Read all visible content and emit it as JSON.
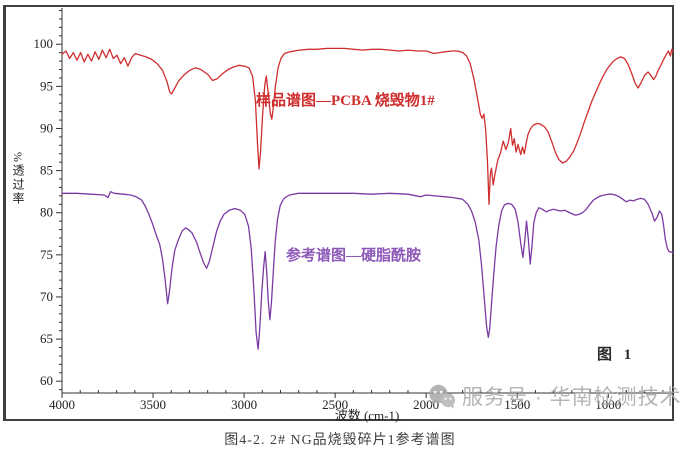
{
  "figure": {
    "caption": "图4-2.    2# NG品烧毁碎片1参考谱图",
    "box_label": "图 1"
  },
  "watermark": {
    "icon": "wechat-icon",
    "text": "服务号 · 华南检测技术",
    "color": "#a8a8a8"
  },
  "chart_data": {
    "type": "line",
    "title": "",
    "xlabel": "波数 (cm-1)",
    "ylabel": "%透过率",
    "x_ticks": [
      4000,
      3500,
      3000,
      2500,
      2000,
      1500,
      1000
    ],
    "y_ticks": [
      100,
      95,
      90,
      85,
      80,
      75,
      70,
      65,
      60
    ],
    "xlim": [
      4000,
      650
    ],
    "ylim": [
      58.6,
      104.3
    ],
    "x_axis_reversed": true,
    "grid": false,
    "legend_position": "inline-annotations",
    "series": [
      {
        "name": "样品谱图—PCBA 烧毁物1#",
        "color": "#cf2e2e",
        "points": [
          [
            4000,
            98.8
          ],
          [
            3978,
            99.2
          ],
          [
            3958,
            98.3
          ],
          [
            3938,
            99.0
          ],
          [
            3918,
            98.1
          ],
          [
            3898,
            99.0
          ],
          [
            3878,
            97.9
          ],
          [
            3858,
            98.8
          ],
          [
            3838,
            98.0
          ],
          [
            3818,
            99.1
          ],
          [
            3798,
            98.2
          ],
          [
            3778,
            99.3
          ],
          [
            3758,
            98.4
          ],
          [
            3738,
            99.4
          ],
          [
            3718,
            98.3
          ],
          [
            3698,
            98.7
          ],
          [
            3678,
            97.7
          ],
          [
            3658,
            98.4
          ],
          [
            3638,
            97.4
          ],
          [
            3618,
            98.4
          ],
          [
            3598,
            98.9
          ],
          [
            3568,
            98.7
          ],
          [
            3538,
            98.5
          ],
          [
            3508,
            98.2
          ],
          [
            3478,
            97.7
          ],
          [
            3448,
            96.9
          ],
          [
            3423,
            95.5
          ],
          [
            3408,
            94.3
          ],
          [
            3398,
            94.1
          ],
          [
            3383,
            94.7
          ],
          [
            3358,
            95.7
          ],
          [
            3328,
            96.4
          ],
          [
            3298,
            96.9
          ],
          [
            3268,
            97.2
          ],
          [
            3238,
            97.0
          ],
          [
            3198,
            96.4
          ],
          [
            3173,
            95.7
          ],
          [
            3148,
            95.9
          ],
          [
            3118,
            96.5
          ],
          [
            3088,
            97.0
          ],
          [
            3058,
            97.3
          ],
          [
            3028,
            97.5
          ],
          [
            2998,
            97.4
          ],
          [
            2973,
            97.2
          ],
          [
            2953,
            96.2
          ],
          [
            2938,
            93.3
          ],
          [
            2926,
            88.0
          ],
          [
            2918,
            85.2
          ],
          [
            2910,
            87.2
          ],
          [
            2898,
            91.8
          ],
          [
            2886,
            95.2
          ],
          [
            2878,
            96.2
          ],
          [
            2868,
            94.3
          ],
          [
            2856,
            91.8
          ],
          [
            2848,
            91.1
          ],
          [
            2840,
            92.4
          ],
          [
            2828,
            95.0
          ],
          [
            2813,
            97.2
          ],
          [
            2798,
            98.3
          ],
          [
            2778,
            98.9
          ],
          [
            2748,
            99.1
          ],
          [
            2698,
            99.3
          ],
          [
            2648,
            99.4
          ],
          [
            2598,
            99.4
          ],
          [
            2548,
            99.5
          ],
          [
            2498,
            99.5
          ],
          [
            2448,
            99.5
          ],
          [
            2398,
            99.4
          ],
          [
            2348,
            99.3
          ],
          [
            2298,
            99.4
          ],
          [
            2248,
            99.4
          ],
          [
            2198,
            99.3
          ],
          [
            2148,
            99.2
          ],
          [
            2098,
            99.3
          ],
          [
            2048,
            99.2
          ],
          [
            1998,
            99.2
          ],
          [
            1958,
            98.9
          ],
          [
            1928,
            99.0
          ],
          [
            1898,
            99.1
          ],
          [
            1858,
            99.2
          ],
          [
            1828,
            99.2
          ],
          [
            1798,
            99.0
          ],
          [
            1778,
            98.6
          ],
          [
            1758,
            97.7
          ],
          [
            1738,
            95.9
          ],
          [
            1718,
            93.6
          ],
          [
            1703,
            91.7
          ],
          [
            1693,
            91.2
          ],
          [
            1683,
            91.7
          ],
          [
            1673,
            89.8
          ],
          [
            1663,
            86.0
          ],
          [
            1655,
            81.0
          ],
          [
            1648,
            84.6
          ],
          [
            1641,
            85.3
          ],
          [
            1632,
            83.3
          ],
          [
            1622,
            84.6
          ],
          [
            1607,
            86.2
          ],
          [
            1592,
            87.1
          ],
          [
            1577,
            88.5
          ],
          [
            1562,
            87.5
          ],
          [
            1549,
            88.3
          ],
          [
            1536,
            90.0
          ],
          [
            1526,
            88.0
          ],
          [
            1516,
            88.8
          ],
          [
            1506,
            87.2
          ],
          [
            1496,
            88.1
          ],
          [
            1481,
            86.9
          ],
          [
            1471,
            87.8
          ],
          [
            1461,
            87.0
          ],
          [
            1451,
            88.2
          ],
          [
            1441,
            89.3
          ],
          [
            1426,
            90.0
          ],
          [
            1411,
            90.4
          ],
          [
            1391,
            90.6
          ],
          [
            1371,
            90.5
          ],
          [
            1351,
            90.2
          ],
          [
            1331,
            89.6
          ],
          [
            1311,
            88.5
          ],
          [
            1291,
            87.2
          ],
          [
            1271,
            86.3
          ],
          [
            1251,
            85.9
          ],
          [
            1231,
            86.1
          ],
          [
            1211,
            86.6
          ],
          [
            1191,
            87.3
          ],
          [
            1171,
            88.3
          ],
          [
            1151,
            89.5
          ],
          [
            1131,
            90.8
          ],
          [
            1111,
            92.0
          ],
          [
            1091,
            93.2
          ],
          [
            1071,
            94.2
          ],
          [
            1051,
            95.2
          ],
          [
            1031,
            96.1
          ],
          [
            1011,
            96.9
          ],
          [
            991,
            97.5
          ],
          [
            971,
            98.0
          ],
          [
            951,
            98.3
          ],
          [
            931,
            98.5
          ],
          [
            911,
            98.3
          ],
          [
            891,
            97.6
          ],
          [
            871,
            96.5
          ],
          [
            851,
            95.3
          ],
          [
            836,
            94.8
          ],
          [
            821,
            95.4
          ],
          [
            801,
            96.3
          ],
          [
            781,
            96.7
          ],
          [
            766,
            96.3
          ],
          [
            751,
            95.8
          ],
          [
            739,
            96.2
          ],
          [
            726,
            96.9
          ],
          [
            711,
            97.5
          ],
          [
            696,
            98.2
          ],
          [
            681,
            98.8
          ],
          [
            669,
            99.2
          ],
          [
            659,
            98.6
          ],
          [
            651,
            99.4
          ],
          [
            645,
            99.1
          ]
        ]
      },
      {
        "name": "参考谱图—硬脂酰胺",
        "color": "#7b3aa3",
        "points": [
          [
            4000,
            82.3
          ],
          [
            3920,
            82.3
          ],
          [
            3840,
            82.2
          ],
          [
            3768,
            82.1
          ],
          [
            3748,
            81.8
          ],
          [
            3733,
            82.5
          ],
          [
            3713,
            82.3
          ],
          [
            3663,
            82.2
          ],
          [
            3623,
            82.1
          ],
          [
            3593,
            81.9
          ],
          [
            3563,
            81.5
          ],
          [
            3543,
            80.8
          ],
          [
            3523,
            79.8
          ],
          [
            3503,
            78.7
          ],
          [
            3483,
            77.4
          ],
          [
            3463,
            76.2
          ],
          [
            3448,
            74.5
          ],
          [
            3433,
            72.0
          ],
          [
            3420,
            69.2
          ],
          [
            3410,
            70.6
          ],
          [
            3396,
            73.4
          ],
          [
            3381,
            75.5
          ],
          [
            3361,
            76.8
          ],
          [
            3341,
            77.8
          ],
          [
            3321,
            78.2
          ],
          [
            3306,
            78.0
          ],
          [
            3286,
            77.6
          ],
          [
            3261,
            76.5
          ],
          [
            3241,
            75.2
          ],
          [
            3221,
            74.0
          ],
          [
            3206,
            73.4
          ],
          [
            3191,
            74.2
          ],
          [
            3171,
            76.0
          ],
          [
            3151,
            77.8
          ],
          [
            3131,
            79.0
          ],
          [
            3111,
            79.8
          ],
          [
            3081,
            80.3
          ],
          [
            3051,
            80.5
          ],
          [
            3021,
            80.3
          ],
          [
            2996,
            79.8
          ],
          [
            2976,
            78.4
          ],
          [
            2961,
            75.8
          ],
          [
            2946,
            70.8
          ],
          [
            2934,
            65.8
          ],
          [
            2923,
            63.8
          ],
          [
            2913,
            66.5
          ],
          [
            2903,
            70.6
          ],
          [
            2893,
            73.5
          ],
          [
            2884,
            75.4
          ],
          [
            2876,
            73.0
          ],
          [
            2867,
            69.4
          ],
          [
            2858,
            67.3
          ],
          [
            2849,
            69.6
          ],
          [
            2839,
            73.2
          ],
          [
            2829,
            76.6
          ],
          [
            2816,
            79.3
          ],
          [
            2801,
            80.9
          ],
          [
            2781,
            81.7
          ],
          [
            2751,
            82.1
          ],
          [
            2701,
            82.3
          ],
          [
            2601,
            82.3
          ],
          [
            2501,
            82.3
          ],
          [
            2401,
            82.3
          ],
          [
            2301,
            82.2
          ],
          [
            2201,
            82.3
          ],
          [
            2101,
            82.2
          ],
          [
            2031,
            81.9
          ],
          [
            2001,
            82.1
          ],
          [
            1951,
            82.0
          ],
          [
            1901,
            81.9
          ],
          [
            1851,
            81.8
          ],
          [
            1801,
            81.6
          ],
          [
            1771,
            81.0
          ],
          [
            1751,
            80.2
          ],
          [
            1731,
            78.9
          ],
          [
            1711,
            76.8
          ],
          [
            1696,
            73.8
          ],
          [
            1681,
            69.8
          ],
          [
            1669,
            66.6
          ],
          [
            1659,
            65.2
          ],
          [
            1651,
            66.2
          ],
          [
            1641,
            69.2
          ],
          [
            1629,
            72.6
          ],
          [
            1616,
            76.0
          ],
          [
            1601,
            78.5
          ],
          [
            1586,
            80.2
          ],
          [
            1571,
            80.9
          ],
          [
            1551,
            81.1
          ],
          [
            1531,
            81.0
          ],
          [
            1511,
            80.4
          ],
          [
            1496,
            78.9
          ],
          [
            1481,
            76.4
          ],
          [
            1469,
            74.7
          ],
          [
            1459,
            76.6
          ],
          [
            1449,
            79.0
          ],
          [
            1439,
            76.9
          ],
          [
            1429,
            73.9
          ],
          [
            1419,
            76.1
          ],
          [
            1409,
            78.8
          ],
          [
            1396,
            80.0
          ],
          [
            1381,
            80.6
          ],
          [
            1361,
            80.4
          ],
          [
            1341,
            80.1
          ],
          [
            1321,
            80.3
          ],
          [
            1301,
            80.4
          ],
          [
            1281,
            80.3
          ],
          [
            1261,
            80.2
          ],
          [
            1241,
            80.3
          ],
          [
            1221,
            80.1
          ],
          [
            1201,
            79.9
          ],
          [
            1181,
            79.7
          ],
          [
            1161,
            79.8
          ],
          [
            1141,
            80.0
          ],
          [
            1121,
            80.4
          ],
          [
            1101,
            81.0
          ],
          [
            1081,
            81.5
          ],
          [
            1061,
            81.8
          ],
          [
            1041,
            82.0
          ],
          [
            1021,
            82.1
          ],
          [
            1001,
            82.2
          ],
          [
            981,
            82.2
          ],
          [
            961,
            82.1
          ],
          [
            941,
            81.9
          ],
          [
            921,
            81.6
          ],
          [
            901,
            81.3
          ],
          [
            881,
            81.5
          ],
          [
            861,
            81.4
          ],
          [
            841,
            81.6
          ],
          [
            821,
            81.7
          ],
          [
            801,
            81.6
          ],
          [
            781,
            81.0
          ],
          [
            761,
            80.0
          ],
          [
            746,
            79.0
          ],
          [
            731,
            79.5
          ],
          [
            719,
            80.2
          ],
          [
            706,
            79.8
          ],
          [
            696,
            78.5
          ],
          [
            686,
            76.8
          ],
          [
            676,
            75.8
          ],
          [
            666,
            75.4
          ],
          [
            651,
            75.3
          ],
          [
            644,
            75.2
          ]
        ]
      }
    ],
    "annotations": [
      {
        "text": "样品谱图—PCBA 烧毁物1#",
        "color": "#cf2e2e",
        "near_x": 2900,
        "near_y": 95
      },
      {
        "text": "参考谱图—硬脂酰胺",
        "color": "#8d58b8",
        "near_x": 2750,
        "near_y": 77
      },
      {
        "text": "图 1",
        "color": "#2b2b2b",
        "near_x": 1050,
        "near_y": 64
      }
    ]
  }
}
